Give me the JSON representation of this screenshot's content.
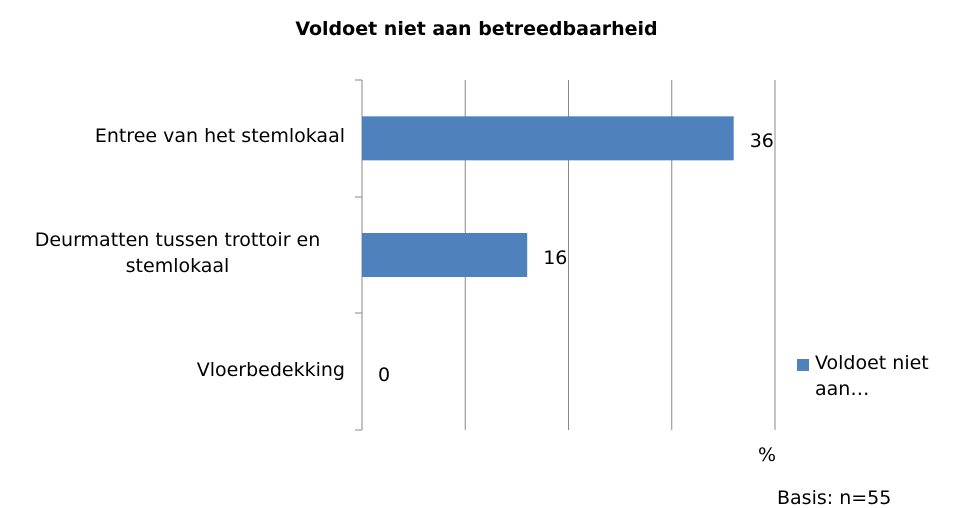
{
  "chart_data": {
    "type": "bar",
    "orientation": "horizontal",
    "title": "Voldoet niet aan betreedbaarheid",
    "categories": [
      "Entree van het stemlokaal",
      "Deurmatten tussen trottoir en stemlokaal",
      "Vloerbedekking"
    ],
    "series": [
      {
        "name": "Voldoet niet aan…",
        "color": "#4f81bd",
        "values": [
          36,
          16,
          0
        ]
      }
    ],
    "xlim": [
      0,
      40
    ],
    "xticks": [
      0,
      10,
      20,
      30,
      40
    ],
    "grid": true,
    "x_label": "%",
    "annotation": "Basis: n=55",
    "legend": "right"
  }
}
